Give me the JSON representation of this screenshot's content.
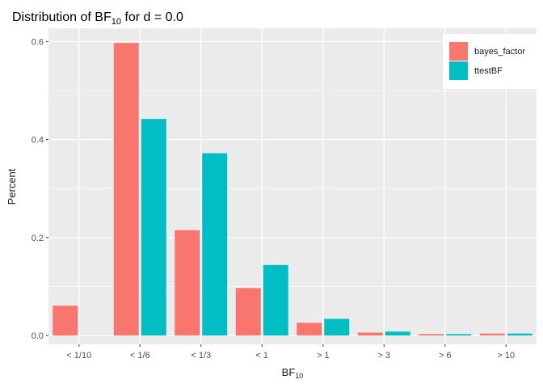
{
  "chart_data": {
    "type": "bar",
    "title_main": "Distribution of BF",
    "title_sub": "10",
    "title_rest": " for d = 0.0",
    "xlabel_main": "BF",
    "xlabel_sub": "10",
    "ylabel": "Percent",
    "categories": [
      "< 1/10",
      "< 1/6",
      "< 1/3",
      "< 1",
      "> 1",
      "> 3",
      "> 6",
      "> 10"
    ],
    "series": [
      {
        "name": "bayes_factor",
        "color": "#F8766D",
        "values": [
          0.061,
          0.597,
          0.215,
          0.097,
          0.026,
          0.006,
          0.003,
          0.004
        ]
      },
      {
        "name": "ttestBF",
        "color": "#00BFC4",
        "values": [
          null,
          0.442,
          0.372,
          0.144,
          0.034,
          0.008,
          0.003,
          0.004
        ]
      }
    ],
    "yticks": [
      "0.0",
      "0.2",
      "0.4",
      "0.6"
    ],
    "ylim": [
      -0.018,
      0.627
    ],
    "grid": true,
    "legend_position": "top-right",
    "panel_color": "#EBEBEB",
    "grid_color": "#FFFFFF"
  }
}
